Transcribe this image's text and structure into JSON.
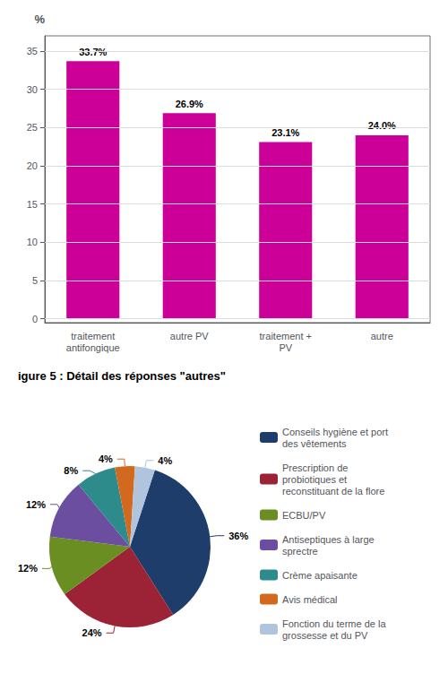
{
  "chart_data": [
    {
      "type": "bar",
      "ylabel": "%",
      "categories": [
        "traitement\nantifongique",
        "autre PV",
        "traitement +\nPV",
        "autre"
      ],
      "values": [
        33.7,
        26.9,
        23.1,
        24.0
      ],
      "value_labels": [
        "33.7%",
        "26.9%",
        "23.1%",
        "24.0%"
      ],
      "data_labels": true,
      "color": "#CC0099",
      "ylim": [
        -0.5,
        37
      ],
      "yticks": [
        0,
        5,
        10,
        15,
        20,
        25,
        30,
        35
      ],
      "grid": true
    },
    {
      "type": "pie",
      "title": "igure 5 : Détail des réponses \"autres\"",
      "categories": [
        "Conseils hygiène et port\ndes vêtements",
        "Prescription de\nprobiotiques et\nreconstituant de la flore",
        "ECBU/PV",
        "Antiseptiques à large\nsprectre",
        "Crème apaisante",
        "Avis médical",
        "Fonction du terme de la\ngrossesse et du PV"
      ],
      "values": [
        36,
        24,
        12,
        12,
        8,
        4,
        4
      ],
      "value_labels": [
        "36%",
        "24%",
        "12%",
        "12%",
        "8%",
        "4%",
        "4%"
      ],
      "data_labels": true,
      "colors": [
        "#1F3D6B",
        "#9B2335",
        "#6B8E23",
        "#6B4EA0",
        "#2E8B8B",
        "#D2691E",
        "#B0C4DE"
      ],
      "legend": "right"
    }
  ]
}
